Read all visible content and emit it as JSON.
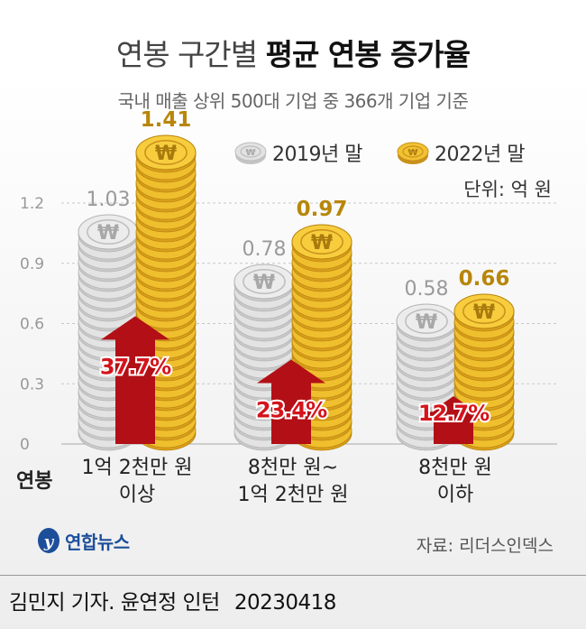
{
  "header": {
    "title_light": "연봉 구간별",
    "title_bold": "평균 연봉 증가율",
    "subtitle": "국내 매출 상위 500대 기업 중 366개 기업 기준"
  },
  "unit_label": "단위: 억 원",
  "source": "자료: 리더스인덱스",
  "logo_text": "연합뉴스",
  "credit": {
    "reporter": "김민지 기자. 윤연정 인턴",
    "date": "20230418"
  },
  "colors": {
    "silver": "#d9d9d9",
    "gold": "#eab52a",
    "gold_label": "#b8860b",
    "arrow": "#b30f16",
    "pct_text": "#d4141c"
  },
  "icons": {
    "coin": "won-coin-icon",
    "arrow": "up-arrow-icon",
    "logo": "yonhap-logo-icon"
  },
  "chart_data": {
    "type": "bar",
    "categories": [
      "1억 2천만 원 이상",
      "8천만 원~ 1억 2천만 원",
      "8천만 원 이하"
    ],
    "category_lines": [
      [
        "1억 2천만 원",
        "이상"
      ],
      [
        "8천만 원~",
        "1억 2천만 원"
      ],
      [
        "8천만 원",
        "이하"
      ]
    ],
    "x_axis_title": "연봉",
    "series": [
      {
        "name": "2019년 말",
        "values": [
          1.03,
          0.78,
          0.58
        ],
        "labels": [
          "1.03",
          "0.78",
          "0.58"
        ]
      },
      {
        "name": "2022년 말",
        "values": [
          1.41,
          0.97,
          0.66
        ],
        "labels": [
          "1.41",
          "0.97",
          "0.66"
        ]
      }
    ],
    "growth_rates": [
      "37.7%",
      "23.4%",
      "12.7%"
    ],
    "y_ticks": [
      0,
      0.3,
      0.6,
      0.9,
      1.2
    ],
    "y_tick_labels": [
      "0",
      "0.3",
      "0.6",
      "0.9",
      "1.2"
    ],
    "ylim": [
      0,
      1.5
    ],
    "grid": true,
    "legend_position": "top-right",
    "coin_symbol": "₩"
  }
}
